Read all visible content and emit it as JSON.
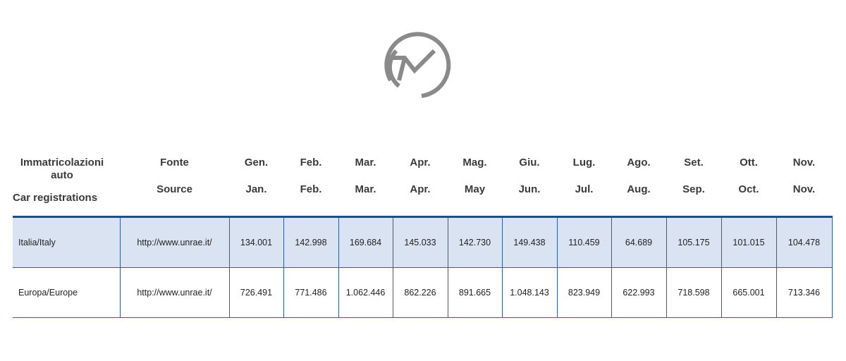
{
  "header": {
    "col1_line1": "Immatricolazioni auto",
    "col1_line2": "Car registrations",
    "source_line1": "Fonte",
    "source_line2": "Source",
    "months": [
      {
        "it": "Gen.",
        "en": "Jan."
      },
      {
        "it": "Feb.",
        "en": "Feb."
      },
      {
        "it": "Mar.",
        "en": "Mar."
      },
      {
        "it": "Apr.",
        "en": "Apr."
      },
      {
        "it": "Mag.",
        "en": "May"
      },
      {
        "it": "Giu.",
        "en": "Jun."
      },
      {
        "it": "Lug.",
        "en": "Jul."
      },
      {
        "it": "Ago.",
        "en": "Aug."
      },
      {
        "it": "Set.",
        "en": "Sep."
      },
      {
        "it": "Ott.",
        "en": "Oct."
      },
      {
        "it": "Nov.",
        "en": "Nov."
      }
    ]
  },
  "rows": [
    {
      "label": "Italia/Italy",
      "source": "http://www.unrae.it/",
      "values": [
        "134.001",
        "142.998",
        "169.684",
        "145.033",
        "142.730",
        "149.438",
        "110.459",
        "64.689",
        "105.175",
        "101.015",
        "104.478"
      ]
    },
    {
      "label": "Europa/Europe",
      "source": "http://www.unrae.it/",
      "values": [
        "726.491",
        "771.486",
        "1.062.446",
        "862.226",
        "891.665",
        "1.048.143",
        "823.949",
        "622.993",
        "718.598",
        "665.001",
        "713.346"
      ]
    }
  ],
  "colors": {
    "logo": "#8a8a8a",
    "italy_row_bg": "#d9e3f2",
    "grid": "#2f5f9f",
    "header_rule": "#1f4e8c"
  }
}
